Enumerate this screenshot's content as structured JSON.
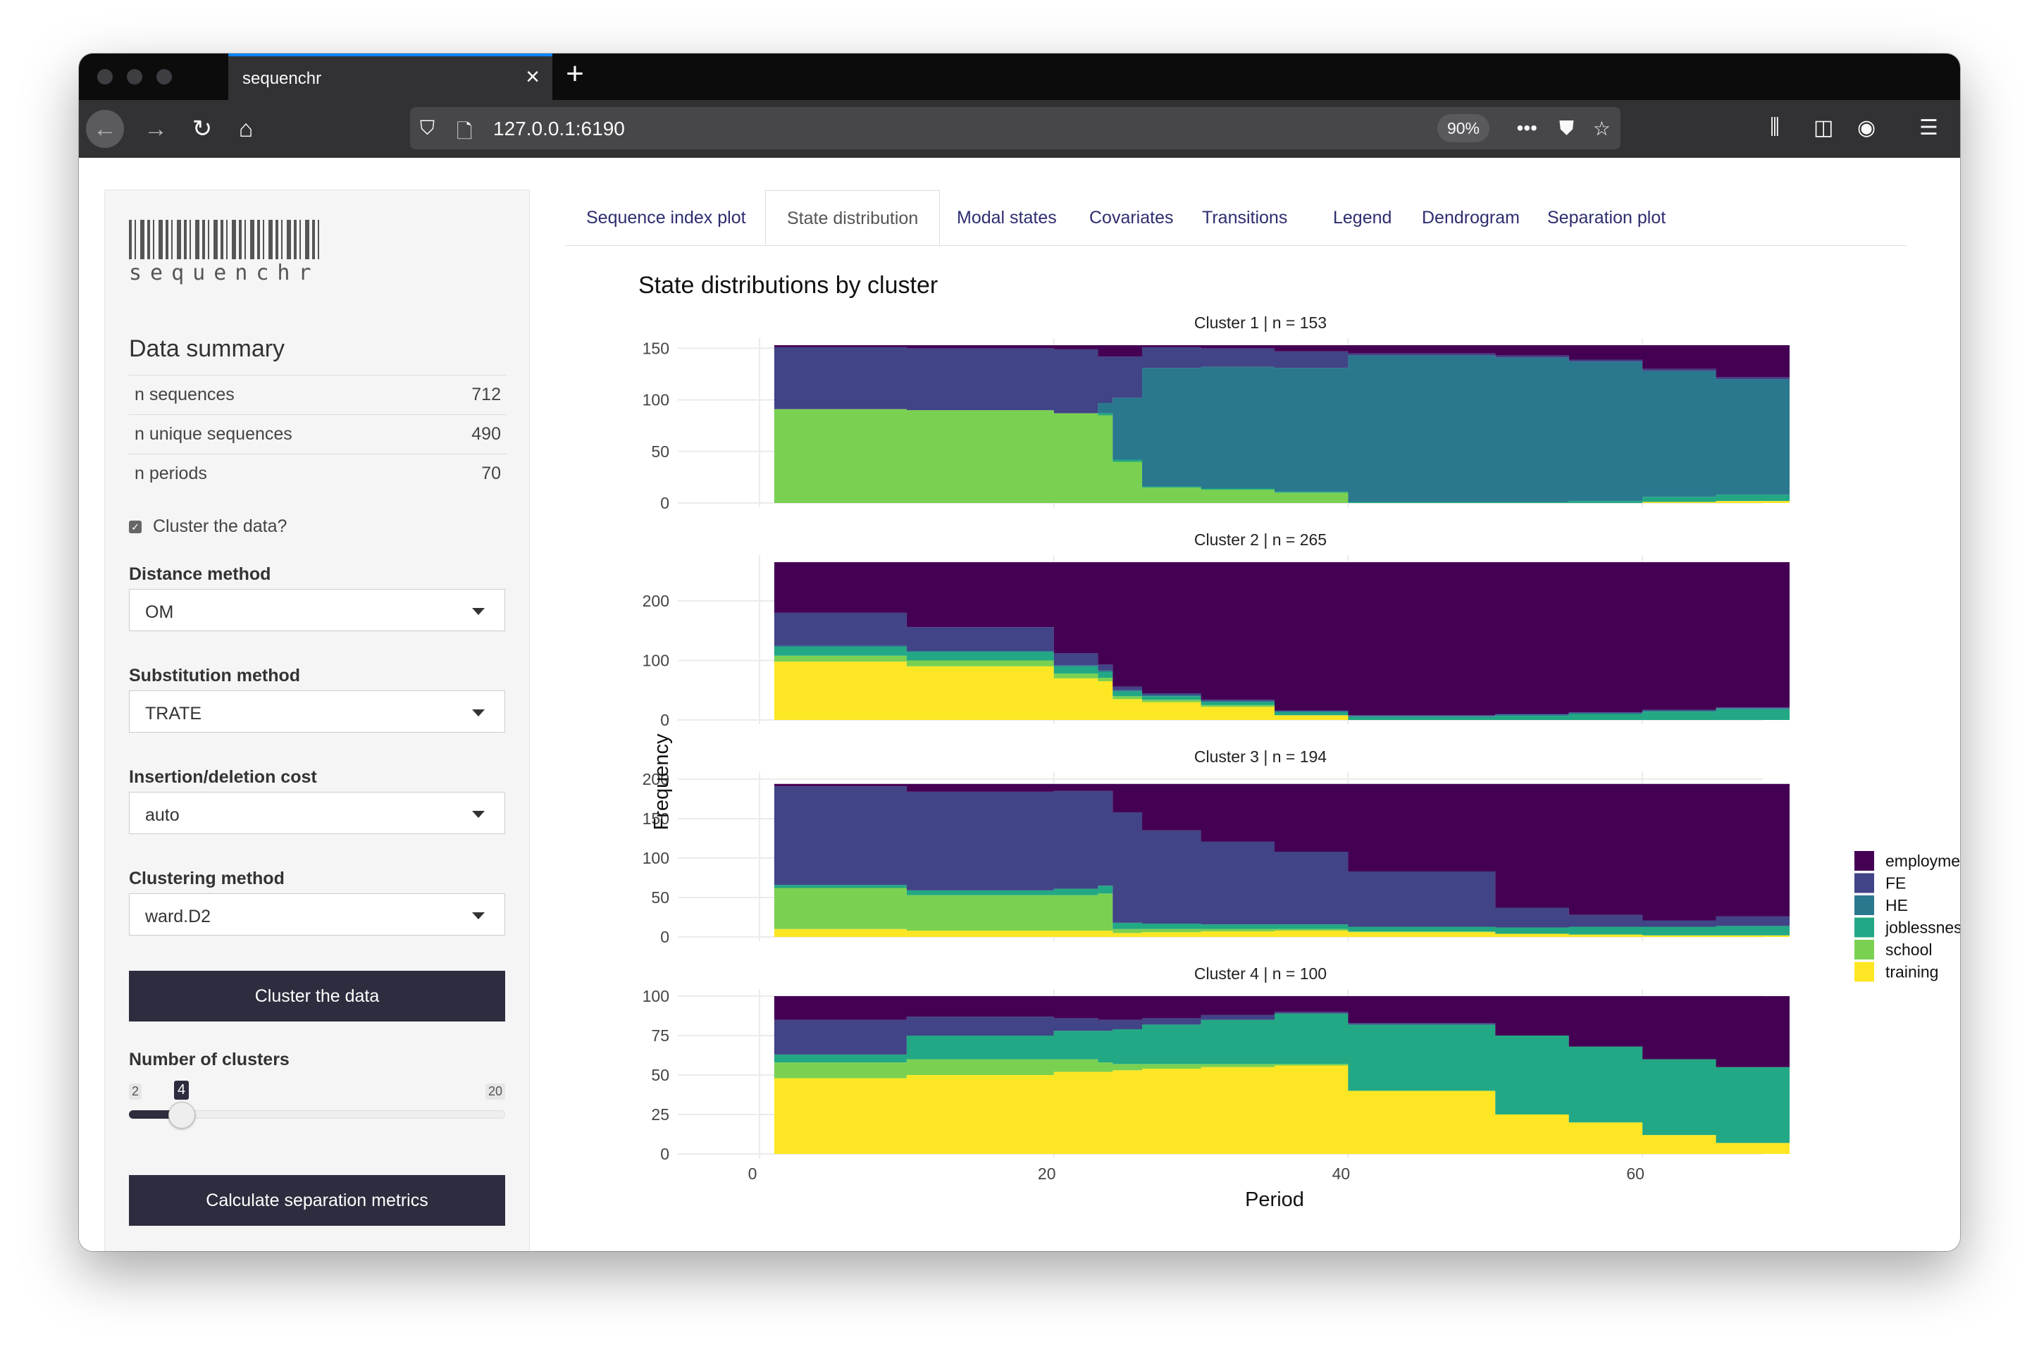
{
  "browser": {
    "tab_title": "sequenchr",
    "url": "127.0.0.1:6190",
    "zoom": "90%"
  },
  "sidebar": {
    "logo_text": "sequenchr",
    "summary_title": "Data summary",
    "summary": [
      {
        "label": "n sequences",
        "value": "712"
      },
      {
        "label": "n unique sequences",
        "value": "490"
      },
      {
        "label": "n periods",
        "value": "70"
      }
    ],
    "cluster_checkbox_label": "Cluster the data?",
    "cluster_checkbox_checked": true,
    "distance_label": "Distance method",
    "distance_value": "OM",
    "substitution_label": "Substitution method",
    "substitution_value": "TRATE",
    "indel_label": "Insertion/deletion cost",
    "indel_value": "auto",
    "clustering_label": "Clustering method",
    "clustering_value": "ward.D2",
    "cluster_button": "Cluster the data",
    "nclusters_label": "Number of clusters",
    "slider_min": "2",
    "slider_max": "20",
    "slider_value": "4",
    "separation_button": "Calculate separation metrics"
  },
  "tabs": [
    "Sequence index plot",
    "State distribution",
    "Modal states",
    "Covariates",
    "Transitions",
    "Legend",
    "Dendrogram",
    "Separation plot"
  ],
  "active_tab": "State distribution",
  "chart_data": {
    "type": "area",
    "title": "State distributions by cluster",
    "xlabel": "Period",
    "ylabel": "Frequency",
    "x_ticks": [
      0,
      20,
      40,
      60
    ],
    "xlim": [
      0,
      70
    ],
    "legend_position": "right",
    "states": [
      "employment",
      "FE",
      "HE",
      "joblessness",
      "school",
      "training"
    ],
    "colors": {
      "employment": "#440154",
      "FE": "#414487",
      "HE": "#2a788e",
      "joblessness": "#22a884",
      "school": "#7ad151",
      "training": "#fde725"
    },
    "x_periods": [
      1,
      10,
      20,
      23,
      24,
      26,
      30,
      35,
      40,
      50,
      55,
      60,
      65,
      70
    ],
    "panels": [
      {
        "title": "Cluster 1  | n =  153",
        "yticks": [
          0,
          50,
          100,
          150
        ],
        "ymax": 153,
        "series": {
          "training": [
            0,
            0,
            0,
            0,
            0,
            0,
            0,
            0,
            0,
            0,
            0,
            1,
            2,
            4
          ],
          "school": [
            91,
            90,
            87,
            85,
            40,
            15,
            13,
            10,
            0,
            0,
            0,
            0,
            0,
            0
          ],
          "joblessness": [
            0,
            0,
            0,
            2,
            2,
            1,
            1,
            1,
            1,
            1,
            2,
            5,
            6,
            5
          ],
          "HE": [
            0,
            0,
            0,
            10,
            60,
            115,
            118,
            120,
            142,
            140,
            135,
            122,
            112,
            108
          ],
          "FE": [
            60,
            60,
            62,
            45,
            40,
            20,
            18,
            16,
            2,
            2,
            2,
            2,
            2,
            2
          ],
          "employment": [
            2,
            3,
            4,
            11,
            11,
            2,
            3,
            6,
            8,
            10,
            14,
            23,
            31,
            34
          ]
        }
      },
      {
        "title": "Cluster 2  | n =  265",
        "yticks": [
          0,
          100,
          200
        ],
        "ymax": 265,
        "series": {
          "training": [
            98,
            90,
            70,
            65,
            35,
            30,
            22,
            8,
            0,
            0,
            0,
            0,
            0,
            0
          ],
          "school": [
            10,
            10,
            8,
            6,
            5,
            4,
            3,
            0,
            0,
            0,
            0,
            0,
            0,
            0
          ],
          "joblessness": [
            15,
            14,
            12,
            10,
            8,
            6,
            5,
            5,
            5,
            7,
            10,
            14,
            18,
            22
          ],
          "HE": [
            2,
            2,
            2,
            2,
            2,
            2,
            2,
            2,
            2,
            2,
            2,
            2,
            2,
            2
          ],
          "FE": [
            55,
            40,
            20,
            10,
            6,
            3,
            2,
            1,
            1,
            1,
            1,
            1,
            1,
            1
          ],
          "employment": [
            85,
            109,
            153,
            172,
            209,
            220,
            231,
            249,
            257,
            255,
            252,
            248,
            244,
            240
          ]
        }
      },
      {
        "title": "Cluster 3  | n =  194",
        "yticks": [
          0,
          50,
          100,
          150,
          200
        ],
        "ymax": 194,
        "series": {
          "training": [
            10,
            8,
            8,
            8,
            5,
            6,
            7,
            8,
            6,
            4,
            3,
            2,
            2,
            2
          ],
          "school": [
            52,
            45,
            45,
            47,
            5,
            4,
            3,
            2,
            1,
            0,
            0,
            0,
            0,
            0
          ],
          "joblessness": [
            4,
            6,
            8,
            10,
            8,
            7,
            6,
            6,
            6,
            8,
            10,
            11,
            12,
            13
          ],
          "HE": [
            0,
            0,
            0,
            0,
            0,
            0,
            0,
            0,
            0,
            0,
            0,
            0,
            0,
            0
          ],
          "FE": [
            125,
            125,
            124,
            120,
            140,
            118,
            105,
            92,
            70,
            25,
            15,
            8,
            12,
            15
          ],
          "employment": [
            3,
            10,
            9,
            9,
            36,
            59,
            73,
            86,
            111,
            157,
            166,
            173,
            168,
            164
          ]
        }
      },
      {
        "title": "Cluster 4  | n =  100",
        "yticks": [
          0,
          25,
          50,
          75,
          100
        ],
        "ymax": 100,
        "series": {
          "training": [
            48,
            50,
            52,
            52,
            53,
            54,
            55,
            56,
            40,
            25,
            20,
            12,
            7,
            3
          ],
          "school": [
            10,
            10,
            8,
            6,
            4,
            3,
            2,
            1,
            0,
            0,
            0,
            0,
            0,
            0
          ],
          "joblessness": [
            5,
            15,
            18,
            20,
            22,
            25,
            28,
            32,
            42,
            50,
            48,
            48,
            48,
            48
          ],
          "HE": [
            0,
            0,
            0,
            0,
            0,
            0,
            0,
            0,
            0,
            0,
            0,
            0,
            0,
            0
          ],
          "FE": [
            22,
            12,
            8,
            7,
            6,
            4,
            3,
            1,
            1,
            0,
            0,
            0,
            0,
            0
          ],
          "employment": [
            15,
            13,
            14,
            15,
            15,
            14,
            12,
            10,
            17,
            25,
            32,
            40,
            45,
            49
          ]
        }
      }
    ]
  }
}
